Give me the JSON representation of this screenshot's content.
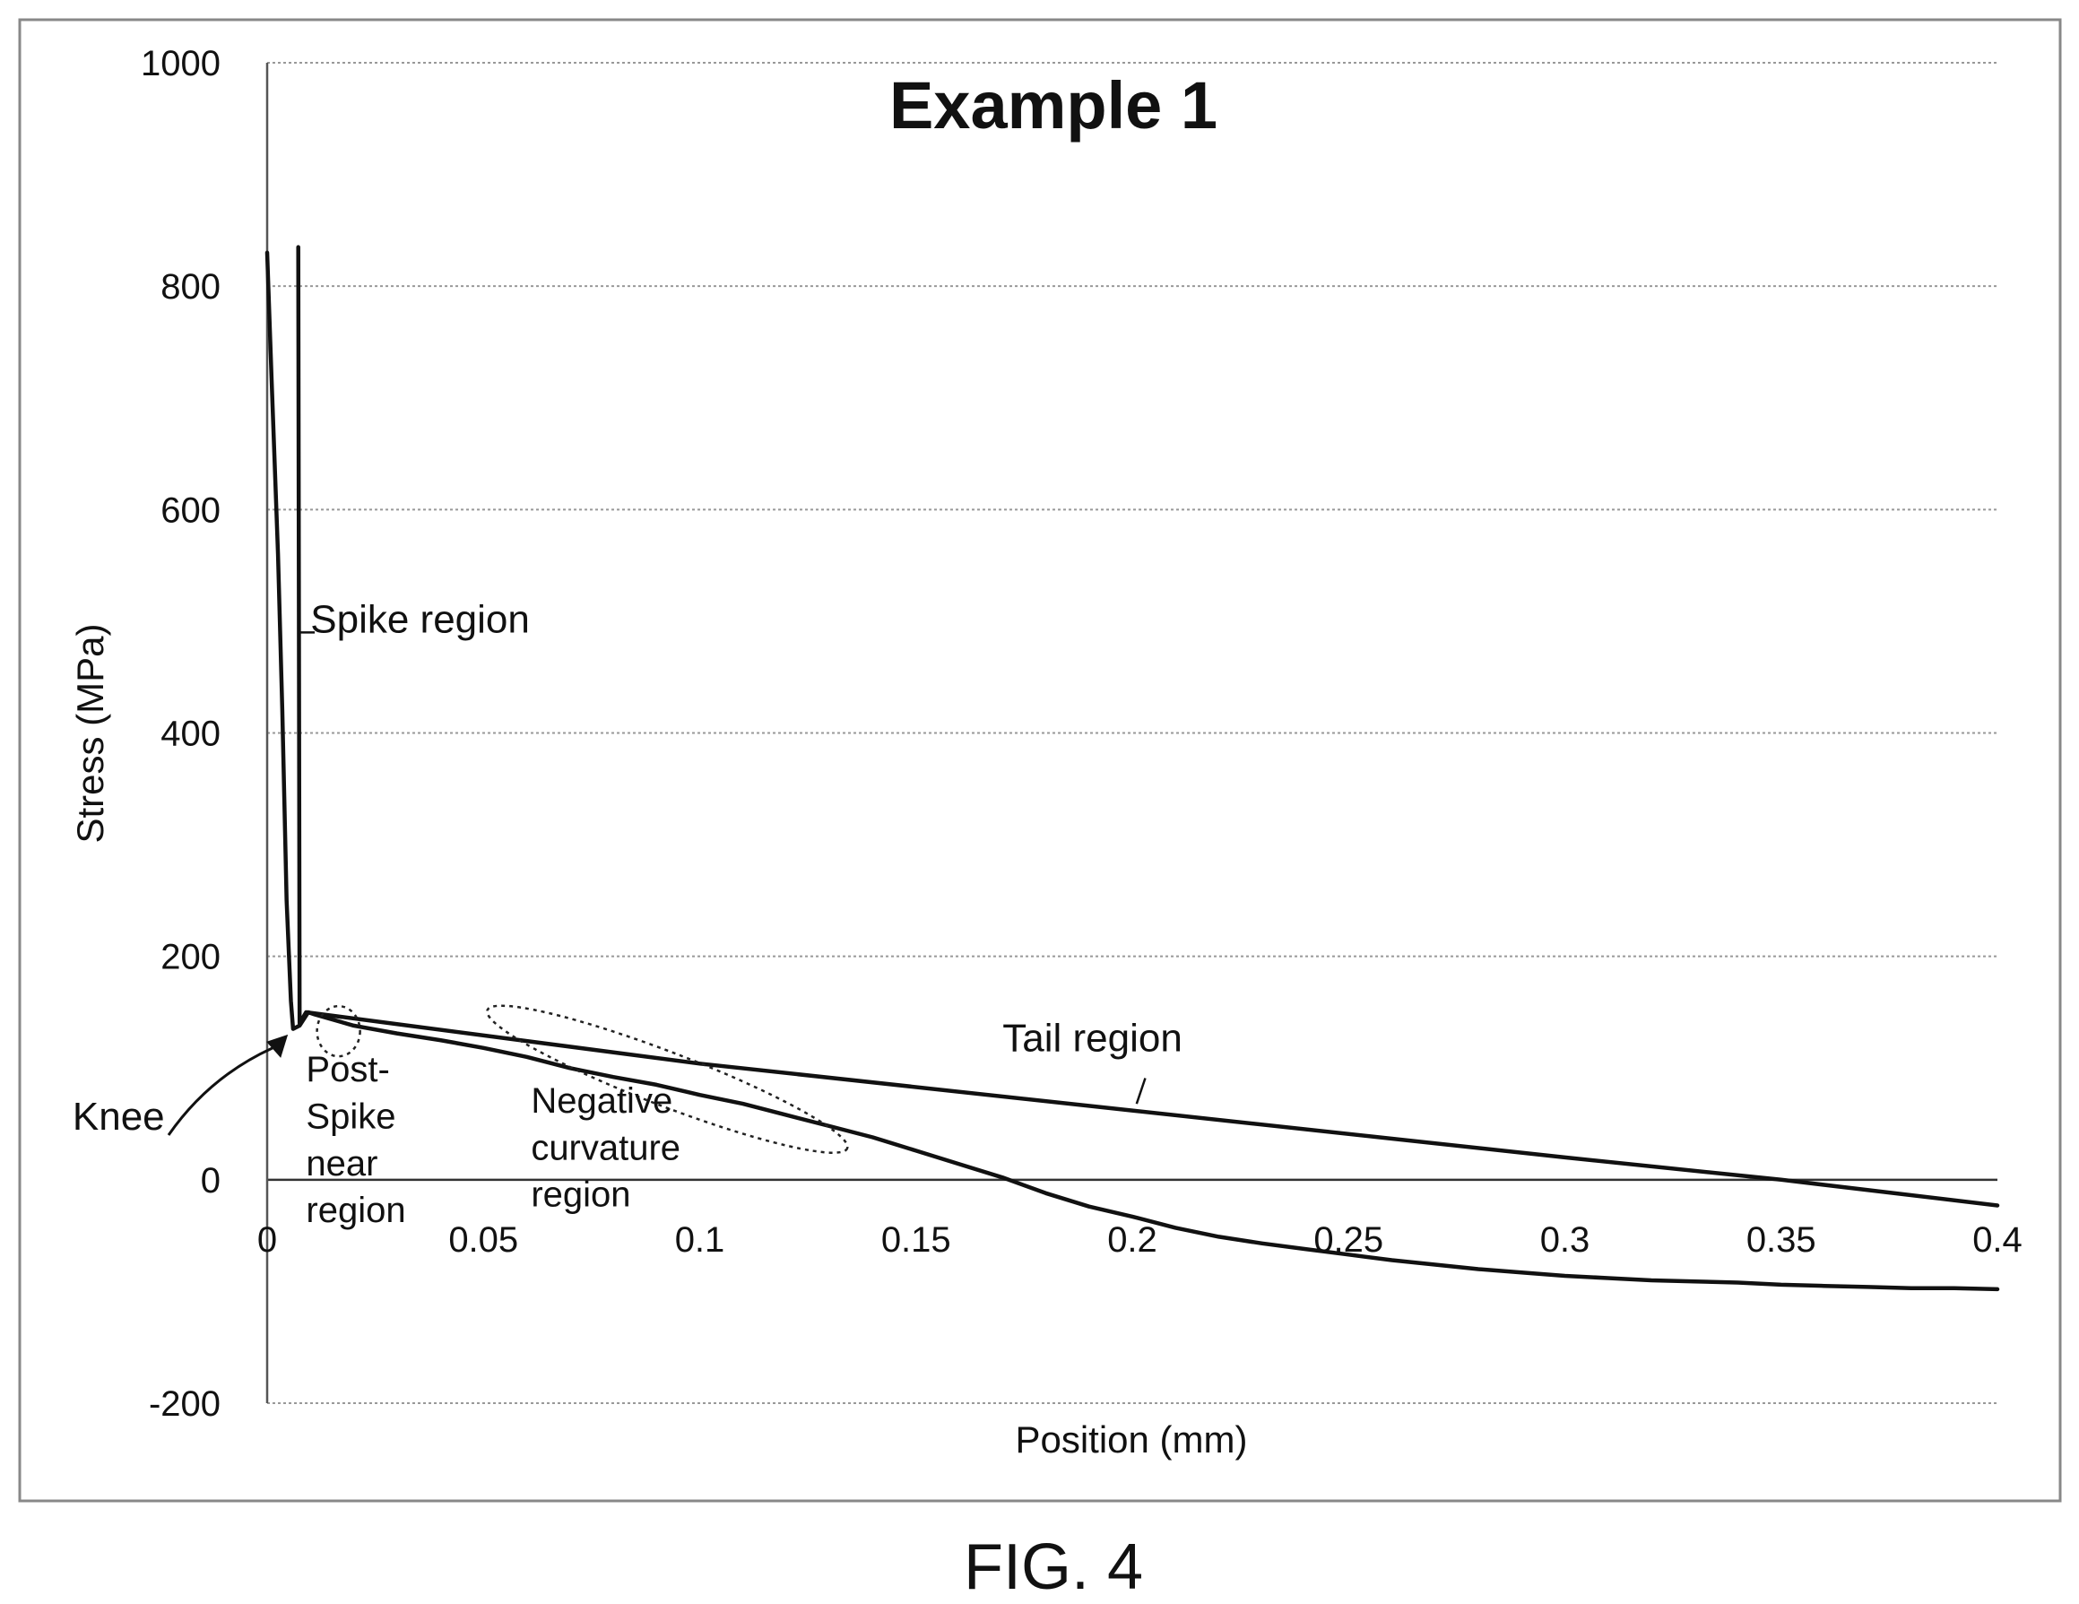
{
  "caption": "FIG. 4",
  "chart_data": {
    "type": "line",
    "title": "Example 1",
    "xlabel": "Position (mm)",
    "ylabel": "Stress (MPa)",
    "xlim": [
      0,
      0.4
    ],
    "ylim": [
      -200,
      1000
    ],
    "xticks": [
      0,
      0.05,
      0.1,
      0.15,
      0.2,
      0.25,
      0.3,
      0.35,
      0.4
    ],
    "xtick_labels": [
      "0",
      "0.05",
      "0.1",
      "0.15",
      "0.2",
      "0.25",
      "0.3",
      "0.35",
      "0.4"
    ],
    "yticks": [
      -200,
      0,
      200,
      400,
      600,
      800,
      1000
    ],
    "ytick_labels": [
      "-200",
      "0",
      "200",
      "400",
      "600",
      "800",
      "1000"
    ],
    "grid": "horizontal",
    "legend": "none",
    "series": [
      {
        "color": "#111111",
        "points": [
          [
            0.0,
            830
          ],
          [
            0.001,
            720
          ],
          [
            0.0025,
            560
          ],
          [
            0.0035,
            420
          ],
          [
            0.0045,
            250
          ],
          [
            0.0055,
            160
          ],
          [
            0.006,
            135
          ],
          [
            0.0075,
            138
          ],
          [
            0.0095,
            150
          ],
          [
            0.011,
            148
          ],
          [
            0.02,
            138
          ],
          [
            0.03,
            131
          ],
          [
            0.04,
            125
          ],
          [
            0.05,
            118
          ],
          [
            0.06,
            110
          ],
          [
            0.07,
            100
          ],
          [
            0.08,
            92
          ],
          [
            0.09,
            85
          ],
          [
            0.1,
            76
          ],
          [
            0.11,
            68
          ],
          [
            0.12,
            58
          ],
          [
            0.13,
            48
          ],
          [
            0.14,
            38
          ],
          [
            0.15,
            26
          ],
          [
            0.16,
            14
          ],
          [
            0.17,
            2
          ],
          [
            0.18,
            -12
          ],
          [
            0.19,
            -24
          ],
          [
            0.2,
            -33
          ],
          [
            0.21,
            -43
          ],
          [
            0.22,
            -51
          ],
          [
            0.23,
            -57
          ],
          [
            0.24,
            -62
          ],
          [
            0.25,
            -67
          ],
          [
            0.26,
            -72
          ],
          [
            0.27,
            -76
          ],
          [
            0.28,
            -80
          ],
          [
            0.29,
            -83
          ],
          [
            0.3,
            -86
          ],
          [
            0.31,
            -88
          ],
          [
            0.32,
            -90
          ],
          [
            0.33,
            -91
          ],
          [
            0.34,
            -92
          ],
          [
            0.35,
            -94
          ],
          [
            0.36,
            -95
          ],
          [
            0.37,
            -96
          ],
          [
            0.38,
            -97
          ],
          [
            0.39,
            -97
          ],
          [
            0.4,
            -98
          ]
        ]
      },
      {
        "color": "#111111",
        "points": [
          [
            0.0072,
            835
          ],
          [
            0.0075,
            140
          ],
          [
            0.009,
            150
          ],
          [
            0.1,
            104
          ],
          [
            0.2,
            62
          ],
          [
            0.3,
            20
          ],
          [
            0.35,
            0
          ],
          [
            0.4,
            -23
          ]
        ]
      }
    ],
    "annotations": [
      {
        "text": "Spike region",
        "at": [
          0.01,
          490
        ]
      },
      {
        "text": "Tail region",
        "at": [
          0.17,
          115
        ]
      },
      {
        "text": "Knee",
        "at": [
          -0.045,
          45
        ]
      },
      {
        "text": "Post-",
        "at": [
          0.009,
          88
        ]
      },
      {
        "text": "Spike",
        "at": [
          0.009,
          46
        ]
      },
      {
        "text": "near",
        "at": [
          0.009,
          4
        ]
      },
      {
        "text": "region",
        "at": [
          0.009,
          -38
        ]
      },
      {
        "text": "Negative",
        "at": [
          0.061,
          60
        ]
      },
      {
        "text": "curvature",
        "at": [
          0.061,
          18
        ]
      },
      {
        "text": "region",
        "at": [
          0.061,
          -24
        ]
      }
    ]
  }
}
